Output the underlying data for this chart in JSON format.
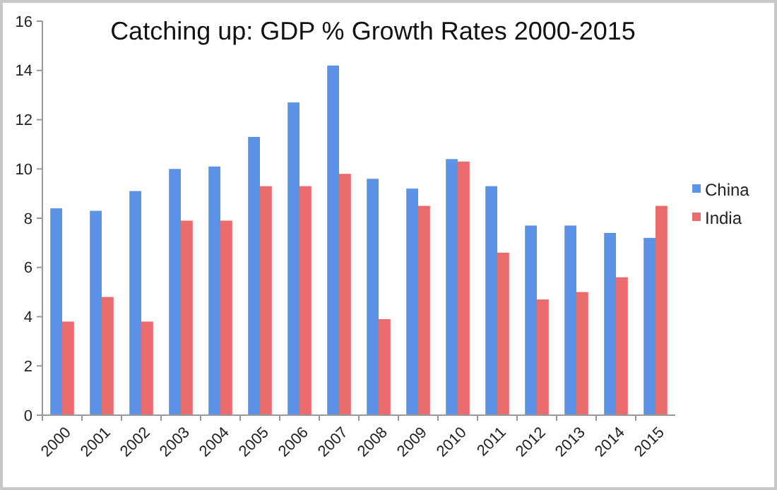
{
  "chart_data": {
    "type": "bar",
    "title": "Catching up: GDP % Growth Rates 2000-2015",
    "categories": [
      "2000",
      "2001",
      "2002",
      "2003",
      "2004",
      "2005",
      "2006",
      "2007",
      "2008",
      "2009",
      "2010",
      "2011",
      "2012",
      "2013",
      "2014",
      "2015"
    ],
    "series": [
      {
        "name": "China",
        "color": "#5b93e6",
        "values": [
          8.4,
          8.3,
          9.1,
          10.0,
          10.1,
          11.3,
          12.7,
          14.2,
          9.6,
          9.2,
          10.4,
          9.3,
          7.7,
          7.7,
          7.4,
          7.2
        ]
      },
      {
        "name": "India",
        "color": "#ea6b6b",
        "values": [
          3.8,
          4.8,
          3.8,
          7.9,
          7.9,
          9.3,
          9.3,
          9.8,
          3.9,
          8.5,
          10.3,
          6.6,
          4.7,
          5.0,
          5.6,
          8.5
        ]
      }
    ],
    "ylim": [
      0,
      16
    ],
    "yticks": [
      0,
      2,
      4,
      6,
      8,
      10,
      12,
      14,
      16
    ],
    "grid": false,
    "legend": "right"
  }
}
